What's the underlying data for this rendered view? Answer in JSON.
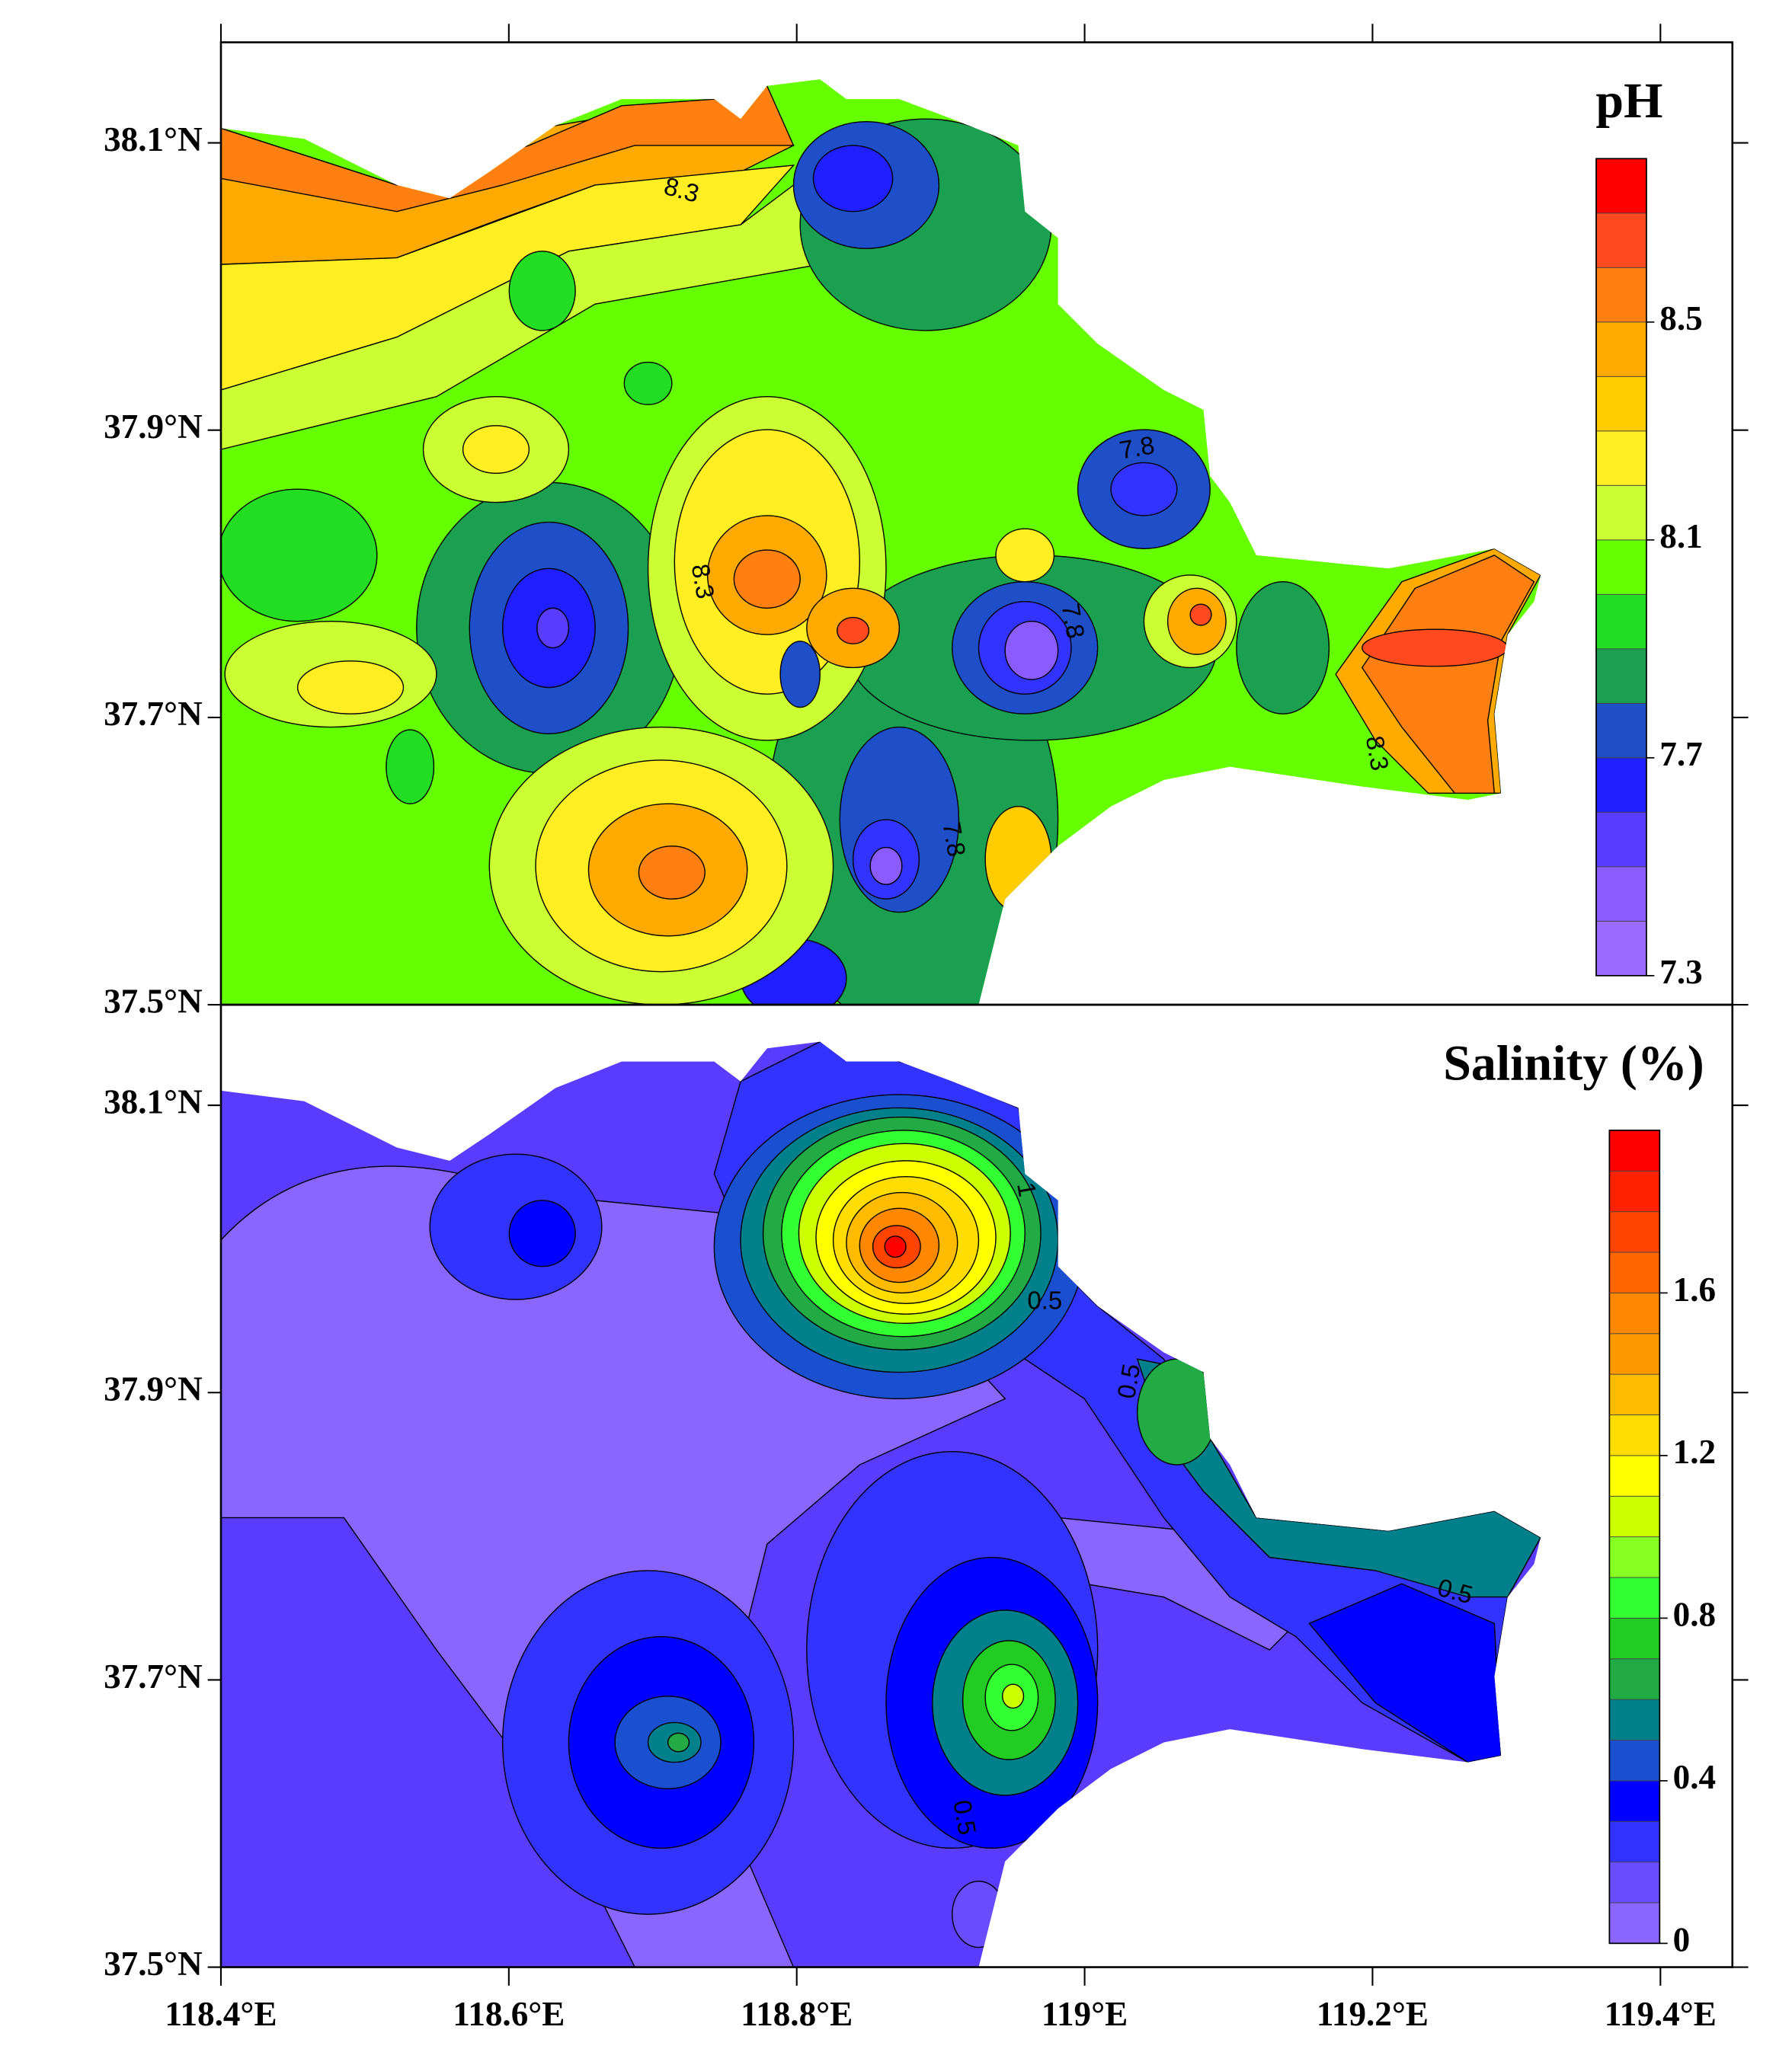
{
  "chart_data": [
    {
      "type": "contour",
      "title": "pH",
      "xlim": [
        118.4,
        119.45
      ],
      "ylim": [
        37.5,
        38.17
      ],
      "xticks": [
        118.4,
        118.6,
        118.8,
        119,
        119.2,
        119.4
      ],
      "yticks": [
        {
          "value": 37.5,
          "label": "37.5°N"
        },
        {
          "value": 37.7,
          "label": "37.7°N"
        },
        {
          "value": 37.9,
          "label": "37.9°N"
        },
        {
          "value": 38.1,
          "label": "38.1°N"
        }
      ],
      "colorbar": {
        "lim": [
          7.3,
          8.8
        ],
        "ticks": [
          7.3,
          7.7,
          8.1,
          8.5
        ],
        "colors": [
          "#9b6bff",
          "#8a5cff",
          "#5a3cff",
          "#1f1fff",
          "#1f4fc8",
          "#1aa050",
          "#22dd22",
          "#66ff00",
          "#ccff33",
          "#ffee22",
          "#ffcc00",
          "#ffaa00",
          "#ff8010",
          "#ff4a20",
          "#ff0000"
        ]
      },
      "contour_labels": [
        8.3,
        8.3,
        7.8,
        7.8,
        8.3,
        7.8
      ]
    },
    {
      "type": "contour",
      "title": "Salinity (%)",
      "xlim": [
        118.4,
        119.45
      ],
      "ylim": [
        37.5,
        38.17
      ],
      "xticks": [
        {
          "value": 118.4,
          "label": "118.4°E"
        },
        {
          "value": 118.6,
          "label": "118.6°E"
        },
        {
          "value": 118.8,
          "label": "118.8°E"
        },
        {
          "value": 119,
          "label": "119°E"
        },
        {
          "value": 119.2,
          "label": "119.2°E"
        },
        {
          "value": 119.4,
          "label": "119.4°E"
        }
      ],
      "yticks": [
        {
          "value": 37.5,
          "label": "37.5°N"
        },
        {
          "value": 37.7,
          "label": "37.7°N"
        },
        {
          "value": 37.9,
          "label": "37.9°N"
        },
        {
          "value": 38.1,
          "label": "38.1°N"
        }
      ],
      "colorbar": {
        "lim": [
          0,
          2
        ],
        "ticks": [
          0,
          0.4,
          0.8,
          1.2,
          1.6
        ],
        "colors": [
          "#8866ff",
          "#6a4dff",
          "#3333ff",
          "#0000ff",
          "#1a4fcf",
          "#00808a",
          "#22aa44",
          "#22cc22",
          "#33ff33",
          "#88ff22",
          "#ccff00",
          "#ffff00",
          "#ffdd00",
          "#ffbb00",
          "#ff9900",
          "#ff8800",
          "#ff6600",
          "#ff4400",
          "#ff2200",
          "#ff0000"
        ]
      },
      "contour_labels": [
        1,
        0.5,
        0.5,
        0.5,
        0.5
      ]
    }
  ]
}
